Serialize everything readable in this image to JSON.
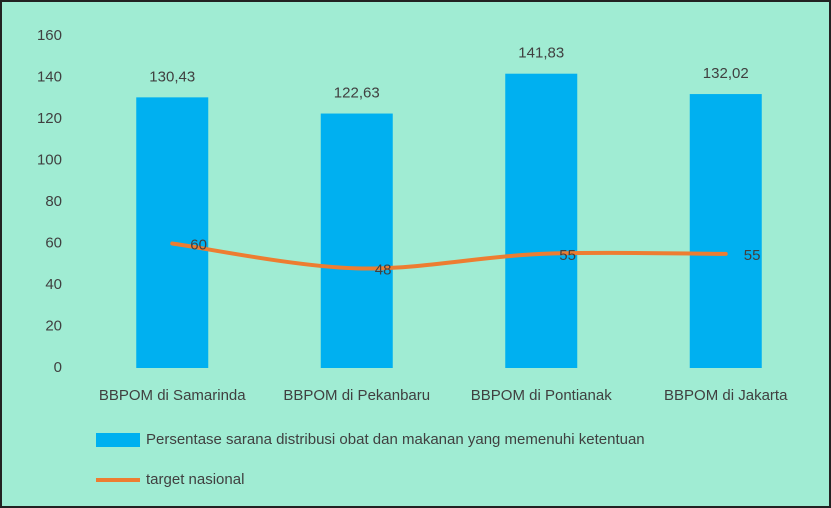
{
  "chart_data": {
    "type": "bar",
    "categories": [
      "BBPOM di Samarinda",
      "BBPOM di Pekanbaru",
      "BBPOM di Pontianak",
      "BBPOM di Jakarta"
    ],
    "series": [
      {
        "name": "Persentase sarana distribusi obat dan makanan yang memenuhi ketentuan",
        "color": "#00b0f0",
        "type": "bar",
        "values": [
          130.43,
          122.63,
          141.83,
          132.02
        ],
        "value_labels": [
          "130,43",
          "122,63",
          "141,83",
          "132,02"
        ]
      },
      {
        "name": "target nasional",
        "color": "#ed7d31",
        "type": "line",
        "values": [
          60,
          48,
          55,
          55
        ]
      }
    ],
    "ylim": [
      0,
      160
    ],
    "yticks": [
      0,
      20,
      40,
      60,
      80,
      100,
      120,
      140,
      160
    ],
    "grid": false,
    "legend": "bottom"
  }
}
